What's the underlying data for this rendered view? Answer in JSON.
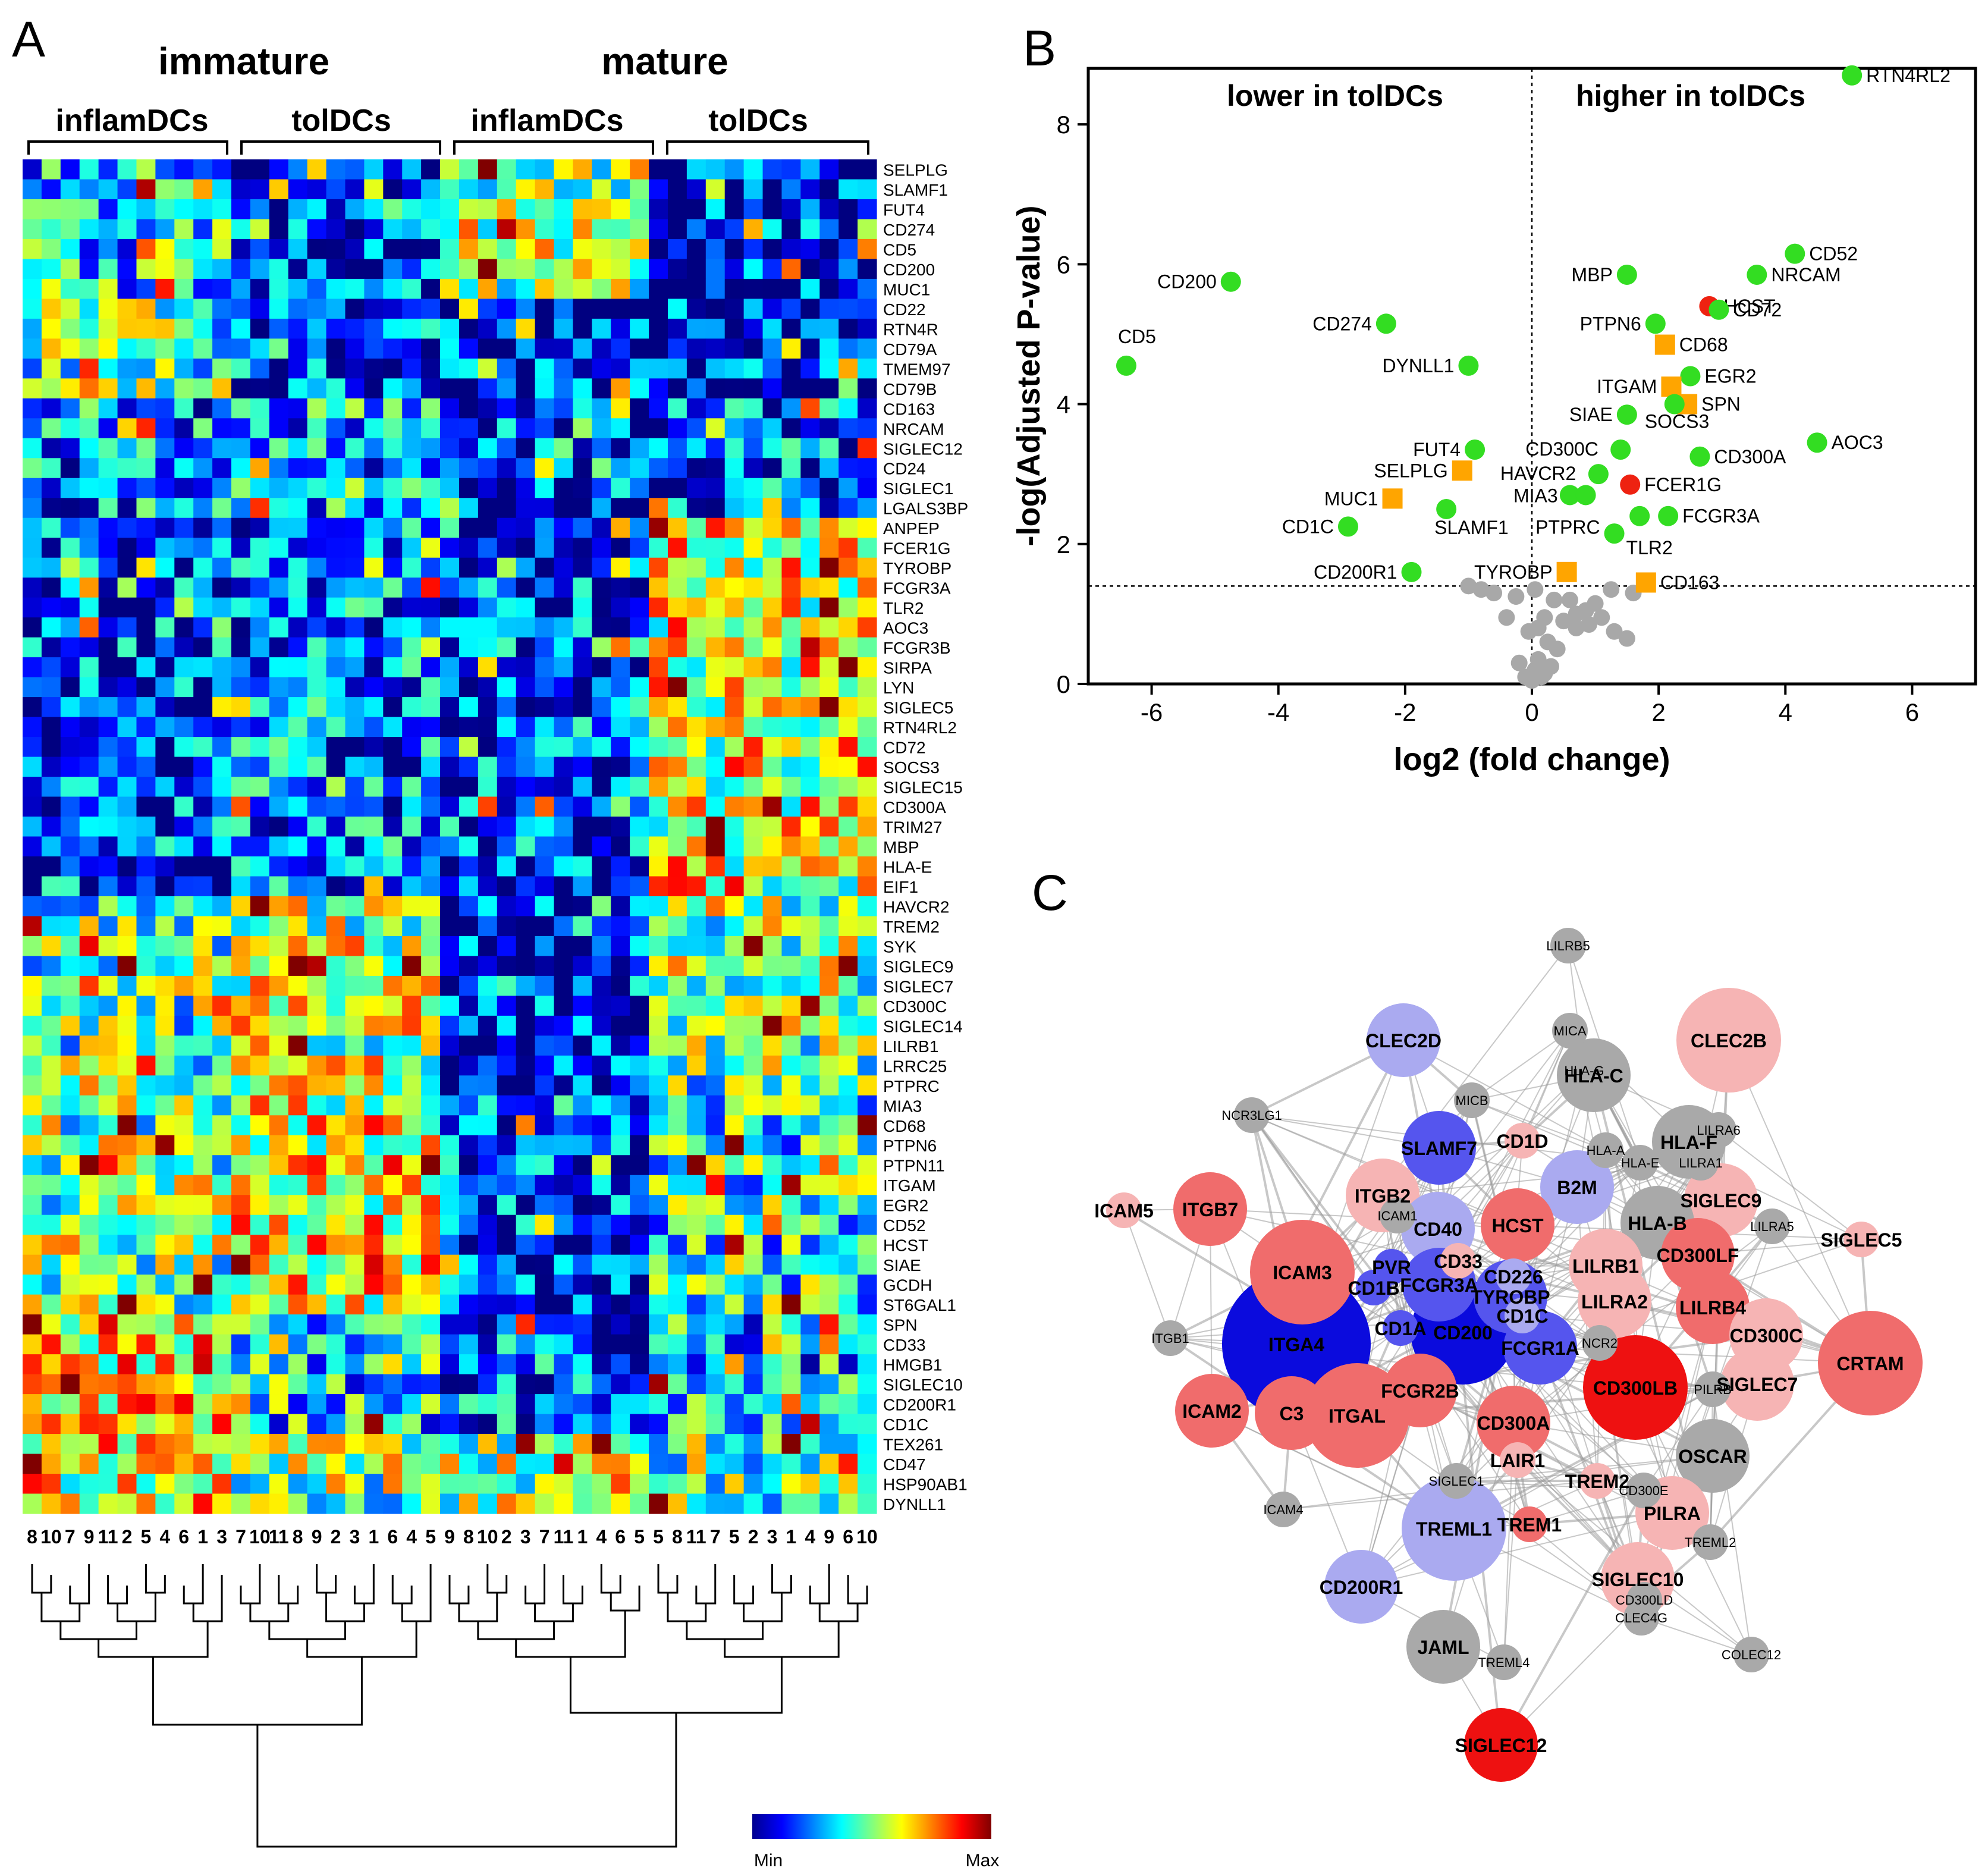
{
  "figure": {
    "panel_a_letter": "A",
    "panel_b_letter": "B",
    "panel_c_letter": "C"
  },
  "colors": {
    "green": "#33dd22",
    "orange": "#ffa500",
    "red": "#ee2211",
    "grey": "#a8a8a8"
  },
  "chart_data": [
    {
      "type": "heatmap",
      "panel": "A",
      "group_headers": [
        "immature",
        "mature"
      ],
      "subgroup_headers": [
        "inflamDCs",
        "tolDCs",
        "inflamDCs",
        "tolDCs"
      ],
      "rows": [
        "SELPLG",
        "SLAMF1",
        "FUT4",
        "CD274",
        "CD5",
        "CD200",
        "MUC1",
        "CD22",
        "RTN4R",
        "CD79A",
        "TMEM97",
        "CD79B",
        "CD163",
        "NRCAM",
        "SIGLEC12",
        "CD24",
        "SIGLEC1",
        "LGALS3BP",
        "ANPEP",
        "FCER1G",
        "TYROBP",
        "FCGR3A",
        "TLR2",
        "AOC3",
        "FCGR3B",
        "SIRPA",
        "LYN",
        "SIGLEC5",
        "RTN4RL2",
        "CD72",
        "SOCS3",
        "SIGLEC15",
        "CD300A",
        "TRIM27",
        "MBP",
        "HLA-E",
        "EIF1",
        "HAVCR2",
        "TREM2",
        "SYK",
        "SIGLEC9",
        "SIGLEC7",
        "CD300C",
        "SIGLEC14",
        "LILRB1",
        "LRRC25",
        "PTPRC",
        "MIA3",
        "CD68",
        "PTPN6",
        "PTPN11",
        "ITGAM",
        "EGR2",
        "CD52",
        "HCST",
        "SIAE",
        "GCDH",
        "ST6GAL1",
        "SPN",
        "CD33",
        "HMGB1",
        "SIGLEC10",
        "CD200R1",
        "CD1C",
        "TEX261",
        "CD47",
        "HSP90AB1",
        "DYNLL1"
      ],
      "column_labels": [
        "8",
        "10",
        "7",
        "9",
        "11",
        "2",
        "5",
        "4",
        "6",
        "1",
        "3",
        "7",
        "10",
        "11",
        "8",
        "9",
        "2",
        "3",
        "1",
        "6",
        "4",
        "5",
        "9",
        "8",
        "10",
        "2",
        "3",
        "7",
        "11",
        "1",
        "4",
        "6",
        "5",
        "5",
        "8",
        "11",
        "7",
        "5",
        "2",
        "3",
        "1",
        "4",
        "9",
        "6",
        "10"
      ],
      "colorbar": {
        "min_label": "Min",
        "max_label": "Max"
      }
    },
    {
      "type": "scatter",
      "panel": "B",
      "title_left": "lower in tolDCs",
      "title_right": "higher in tolDCs",
      "xlabel": "log2 (fold change)",
      "ylabel": "-log(Adjusted P-value)",
      "xlim": [
        -7,
        7
      ],
      "ylim": [
        0,
        8.8
      ],
      "xticks": [
        -6,
        -4,
        -2,
        0,
        2,
        4,
        6
      ],
      "yticks": [
        0,
        2,
        4,
        6,
        8
      ],
      "significance_threshold": 1.4,
      "points": [
        {
          "label": "RTN4RL2",
          "x": 5.05,
          "y": 8.7,
          "color": "green",
          "marker": "circle"
        },
        {
          "label": "CD52",
          "x": 4.15,
          "y": 6.15,
          "color": "green",
          "marker": "circle"
        },
        {
          "label": "NRCAM",
          "x": 3.55,
          "y": 5.85,
          "color": "green",
          "marker": "circle"
        },
        {
          "label": "MBP",
          "x": 1.5,
          "y": 5.85,
          "color": "green",
          "marker": "circle"
        },
        {
          "label": "HCST",
          "x": 2.8,
          "y": 5.4,
          "color": "red",
          "marker": "circle"
        },
        {
          "label": "CD72",
          "x": 2.95,
          "y": 5.35,
          "color": "green",
          "marker": "circle"
        },
        {
          "label": "PTPN6",
          "x": 1.95,
          "y": 5.15,
          "color": "green",
          "marker": "circle"
        },
        {
          "label": "CD68",
          "x": 2.1,
          "y": 4.85,
          "color": "orange",
          "marker": "square"
        },
        {
          "label": "EGR2",
          "x": 2.5,
          "y": 4.4,
          "color": "green",
          "marker": "circle"
        },
        {
          "label": "ITGAM",
          "x": 2.2,
          "y": 4.25,
          "color": "orange",
          "marker": "square"
        },
        {
          "label": "SPN",
          "x": 2.45,
          "y": 4.0,
          "color": "orange",
          "marker": "square"
        },
        {
          "label": "SOCS3",
          "x": 2.25,
          "y": 4.0,
          "color": "green",
          "marker": "circle"
        },
        {
          "label": "SIAE",
          "x": 1.5,
          "y": 3.85,
          "color": "green",
          "marker": "circle"
        },
        {
          "label": "CD300C",
          "x": 1.4,
          "y": 3.35,
          "color": "green",
          "marker": "circle"
        },
        {
          "label": "CD300A",
          "x": 2.65,
          "y": 3.25,
          "color": "green",
          "marker": "circle"
        },
        {
          "label": "AOC3",
          "x": 4.5,
          "y": 3.45,
          "color": "green",
          "marker": "circle"
        },
        {
          "label": "HAVCR2",
          "x": 1.05,
          "y": 3.0,
          "color": "green",
          "marker": "circle"
        },
        {
          "label": "FCER1G",
          "x": 1.55,
          "y": 2.85,
          "color": "red",
          "marker": "circle"
        },
        {
          "label": "MIA3",
          "x": 0.6,
          "y": 2.7,
          "color": "green",
          "marker": "circle"
        },
        {
          "label": "MIA3-b",
          "x": 0.85,
          "y": 2.7,
          "color": "green",
          "marker": "circle"
        },
        {
          "label": "PTPRC",
          "x": 1.7,
          "y": 2.4,
          "color": "green",
          "marker": "circle"
        },
        {
          "label": "FCGR3A",
          "x": 2.15,
          "y": 2.4,
          "color": "green",
          "marker": "circle"
        },
        {
          "label": "TLR2",
          "x": 1.3,
          "y": 2.15,
          "color": "green",
          "marker": "circle"
        },
        {
          "label": "TYROBP",
          "x": 0.55,
          "y": 1.6,
          "color": "orange",
          "marker": "square"
        },
        {
          "label": "CD163",
          "x": 1.8,
          "y": 1.45,
          "color": "orange",
          "marker": "square"
        },
        {
          "label": "CD200",
          "x": -4.75,
          "y": 5.75,
          "color": "green",
          "marker": "circle"
        },
        {
          "label": "CD274",
          "x": -2.3,
          "y": 5.15,
          "color": "green",
          "marker": "circle"
        },
        {
          "label": "CD5",
          "x": -6.4,
          "y": 4.55,
          "color": "green",
          "marker": "circle"
        },
        {
          "label": "DYNLL1",
          "x": -1.0,
          "y": 4.55,
          "color": "green",
          "marker": "circle"
        },
        {
          "label": "FUT4",
          "x": -0.9,
          "y": 3.35,
          "color": "green",
          "marker": "circle"
        },
        {
          "label": "SELPLG",
          "x": -1.1,
          "y": 3.05,
          "color": "orange",
          "marker": "square"
        },
        {
          "label": "MUC1",
          "x": -2.2,
          "y": 2.65,
          "color": "orange",
          "marker": "square"
        },
        {
          "label": "SLAMF1",
          "x": -1.35,
          "y": 2.5,
          "color": "green",
          "marker": "circle"
        },
        {
          "label": "CD1C",
          "x": -2.9,
          "y": 2.25,
          "color": "green",
          "marker": "circle"
        },
        {
          "label": "CD200R1",
          "x": -1.9,
          "y": 1.6,
          "color": "green",
          "marker": "circle"
        }
      ],
      "grey_points": [
        [
          0.15,
          0.1
        ],
        [
          0.2,
          0.15
        ],
        [
          0.05,
          0.2
        ],
        [
          -0.1,
          0.1
        ],
        [
          0.3,
          0.25
        ],
        [
          0.1,
          0.35
        ],
        [
          0.0,
          0.05
        ],
        [
          -0.2,
          0.3
        ],
        [
          0.4,
          0.5
        ],
        [
          0.25,
          0.6
        ],
        [
          0.1,
          0.8
        ],
        [
          -0.05,
          0.75
        ],
        [
          0.2,
          0.95
        ],
        [
          0.5,
          0.9
        ],
        [
          0.7,
          0.8
        ],
        [
          0.9,
          0.85
        ],
        [
          1.1,
          0.95
        ],
        [
          1.3,
          0.75
        ],
        [
          1.5,
          0.65
        ],
        [
          0.6,
          1.2
        ],
        [
          0.85,
          1.05
        ],
        [
          1.25,
          1.35
        ],
        [
          1.6,
          1.3
        ],
        [
          -0.4,
          0.95
        ],
        [
          -0.25,
          1.25
        ],
        [
          -0.8,
          1.35
        ],
        [
          -0.6,
          1.3
        ],
        [
          -1.0,
          1.4
        ],
        [
          0.05,
          1.35
        ],
        [
          0.35,
          1.2
        ],
        [
          0.7,
          1.0
        ],
        [
          1.0,
          1.15
        ]
      ]
    },
    {
      "type": "network",
      "panel": "C",
      "nodes": [
        {
          "label": "LILRB5",
          "color": "grey",
          "size": "s"
        },
        {
          "label": "MICA",
          "color": "grey",
          "size": "s"
        },
        {
          "label": "CLEC2D",
          "color": "lightblue",
          "size": "m"
        },
        {
          "label": "CLEC2B",
          "color": "pink",
          "size": "l"
        },
        {
          "label": "HLA-G",
          "color": "grey",
          "size": "s"
        },
        {
          "label": "HLA-C",
          "color": "grey",
          "size": "m"
        },
        {
          "label": "NCR3LG1",
          "color": "grey",
          "size": "s"
        },
        {
          "label": "MICB",
          "color": "grey",
          "size": "s"
        },
        {
          "label": "SLAMF7",
          "color": "blue",
          "size": "m"
        },
        {
          "label": "CD1D",
          "color": "pink",
          "size": "s"
        },
        {
          "label": "HLA-A",
          "color": "grey",
          "size": "s"
        },
        {
          "label": "LILRA6",
          "color": "grey",
          "size": "s"
        },
        {
          "label": "HLA-F",
          "color": "grey",
          "size": "m"
        },
        {
          "label": "HLA-E",
          "color": "grey",
          "size": "s"
        },
        {
          "label": "LILRA1",
          "color": "grey",
          "size": "s"
        },
        {
          "label": "ICAM5",
          "color": "pink",
          "size": "s"
        },
        {
          "label": "ITGB7",
          "color": "salmon",
          "size": "m"
        },
        {
          "label": "ITGB2",
          "color": "pink",
          "size": "m"
        },
        {
          "label": "ICAM1",
          "color": "grey",
          "size": "s"
        },
        {
          "label": "B2M",
          "color": "lightblue",
          "size": "m"
        },
        {
          "label": "SIGLEC9",
          "color": "pink",
          "size": "m"
        },
        {
          "label": "LILRA5",
          "color": "grey",
          "size": "s"
        },
        {
          "label": "SIGLEC5",
          "color": "pink",
          "size": "s"
        },
        {
          "label": "CD40",
          "color": "lightblue",
          "size": "m"
        },
        {
          "label": "HCST",
          "color": "salmon",
          "size": "m"
        },
        {
          "label": "HLA-B",
          "color": "grey",
          "size": "m"
        },
        {
          "label": "CD300LF",
          "color": "salmon",
          "size": "m"
        },
        {
          "label": "ICAM3",
          "color": "salmon",
          "size": "l"
        },
        {
          "label": "PVR",
          "color": "blue",
          "size": "s"
        },
        {
          "label": "CD33",
          "color": "pink",
          "size": "s"
        },
        {
          "label": "CD226",
          "color": "lightblue",
          "size": "s"
        },
        {
          "label": "LILRB1",
          "color": "pink",
          "size": "m"
        },
        {
          "label": "CD1B",
          "color": "blue",
          "size": "s"
        },
        {
          "label": "FCGR3A",
          "color": "blue",
          "size": "m"
        },
        {
          "label": "LILRA2",
          "color": "pink",
          "size": "m"
        },
        {
          "label": "LILRB4",
          "color": "salmon",
          "size": "m"
        },
        {
          "label": "TYROBP",
          "color": "blue",
          "size": "m"
        },
        {
          "label": "ITGA4",
          "color": "darkblue",
          "size": "xl"
        },
        {
          "label": "CD1A",
          "color": "blue",
          "size": "s"
        },
        {
          "label": "CD200",
          "color": "darkblue",
          "size": "l"
        },
        {
          "label": "CD1C",
          "color": "lightblue",
          "size": "s"
        },
        {
          "label": "CD300C",
          "color": "pink",
          "size": "m"
        },
        {
          "label": "CRTAM",
          "color": "salmon",
          "size": "l"
        },
        {
          "label": "ITGB1",
          "color": "grey",
          "size": "s"
        },
        {
          "label": "FCGR1A",
          "color": "blue",
          "size": "m"
        },
        {
          "label": "NCR2",
          "color": "grey",
          "size": "s"
        },
        {
          "label": "CD300LB",
          "color": "red",
          "size": "l"
        },
        {
          "label": "PILRB",
          "color": "grey",
          "size": "s"
        },
        {
          "label": "SIGLEC7",
          "color": "pink",
          "size": "m"
        },
        {
          "label": "ICAM2",
          "color": "salmon",
          "size": "m"
        },
        {
          "label": "C3",
          "color": "salmon",
          "size": "m"
        },
        {
          "label": "ITGAL",
          "color": "salmon",
          "size": "l"
        },
        {
          "label": "FCGR2B",
          "color": "salmon",
          "size": "m"
        },
        {
          "label": "CD300A",
          "color": "salmon",
          "size": "m"
        },
        {
          "label": "LAIR1",
          "color": "pink",
          "size": "s"
        },
        {
          "label": "SIGLEC1",
          "color": "grey",
          "size": "s"
        },
        {
          "label": "TREM2",
          "color": "pink",
          "size": "s"
        },
        {
          "label": "OSCAR",
          "color": "grey",
          "size": "m"
        },
        {
          "label": "ICAM4",
          "color": "grey",
          "size": "s"
        },
        {
          "label": "TREML1",
          "color": "lightblue",
          "size": "l"
        },
        {
          "label": "TREM1",
          "color": "salmon",
          "size": "s"
        },
        {
          "label": "CD300E",
          "color": "grey",
          "size": "s"
        },
        {
          "label": "PILRA",
          "color": "pink",
          "size": "m"
        },
        {
          "label": "TREML2",
          "color": "grey",
          "size": "s"
        },
        {
          "label": "CD200R1",
          "color": "lightblue",
          "size": "m"
        },
        {
          "label": "SIGLEC10",
          "color": "pink",
          "size": "m"
        },
        {
          "label": "CD300LD",
          "color": "grey",
          "size": "s"
        },
        {
          "label": "CLEC4G",
          "color": "grey",
          "size": "s"
        },
        {
          "label": "JAML",
          "color": "grey",
          "size": "m"
        },
        {
          "label": "TREML4",
          "color": "grey",
          "size": "s"
        },
        {
          "label": "COLEC12",
          "color": "grey",
          "size": "s"
        },
        {
          "label": "SIGLEC12",
          "color": "red",
          "size": "m"
        }
      ]
    }
  ]
}
